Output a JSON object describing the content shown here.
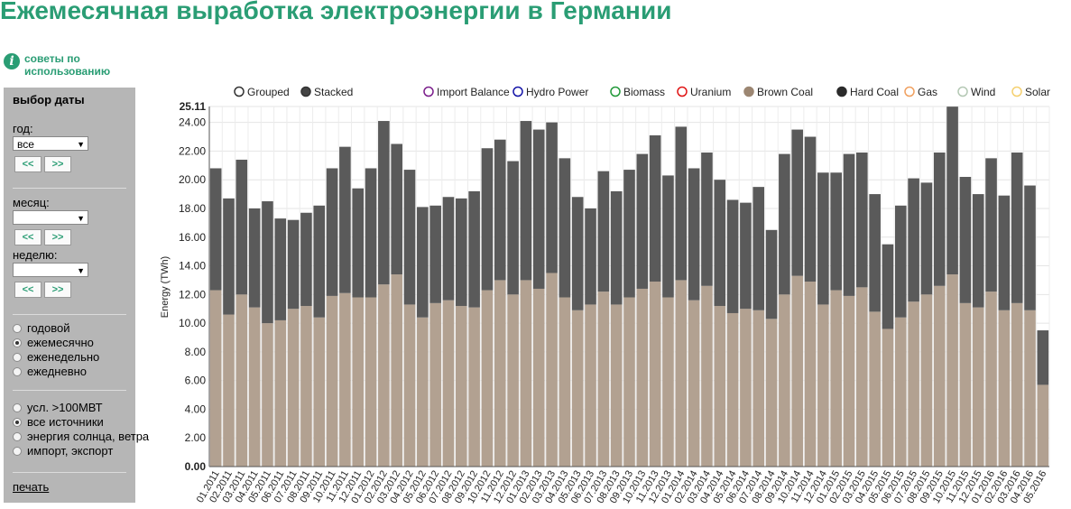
{
  "title": "Ежемесячная выработка электроэнергии в Германии",
  "tips_label": "советы по использованию",
  "sidebar": {
    "heading": "выбор даты",
    "year_label": "год:",
    "year_value": "все",
    "month_label": "месяц:",
    "month_value": "",
    "week_label": "неделю:",
    "week_value": "",
    "prev_label": "<<",
    "next_label": ">>",
    "period_options": [
      {
        "label": "годовой",
        "checked": false
      },
      {
        "label": "ежемесячно",
        "checked": true
      },
      {
        "label": "еженедельно",
        "checked": false
      },
      {
        "label": "ежедневно",
        "checked": false
      }
    ],
    "source_options": [
      {
        "label": "усл. >100МВТ",
        "checked": false
      },
      {
        "label": "все источники",
        "checked": true
      },
      {
        "label": "энергия солнца, ветра",
        "checked": false
      },
      {
        "label": "импорт, экспорт",
        "checked": false
      }
    ],
    "print_label": "печать"
  },
  "legend": {
    "modes": [
      {
        "label": "Grouped",
        "selected": false
      },
      {
        "label": "Stacked",
        "selected": true
      }
    ],
    "sources": [
      {
        "label": "Import Balance",
        "color": "#7b1f8c",
        "active": false
      },
      {
        "label": "Hydro Power",
        "color": "#1515a8",
        "active": false
      },
      {
        "label": "Biomass",
        "color": "#22993a",
        "active": false
      },
      {
        "label": "Uranium",
        "color": "#e01515",
        "active": false
      },
      {
        "label": "Brown Coal",
        "color": "#9c8672",
        "active": true
      },
      {
        "label": "Hard Coal",
        "color": "#2b2b2b",
        "active": true
      },
      {
        "label": "Gas",
        "color": "#f0a060",
        "active": false
      },
      {
        "label": "Wind",
        "color": "#b4c8b4",
        "active": false
      },
      {
        "label": "Solar",
        "color": "#f5d070",
        "active": false
      }
    ]
  },
  "chart_data": {
    "type": "bar",
    "stacked": true,
    "ylabel": "Energy (TWh)",
    "ylim": [
      0,
      25.11
    ],
    "ymax_label": "25.11",
    "yticks": [
      0,
      2,
      4,
      6,
      8,
      10,
      12,
      14,
      16,
      18,
      20,
      22,
      24
    ],
    "grid": true,
    "categories": [
      "01.2011",
      "02.2011",
      "03.2011",
      "04.2011",
      "05.2011",
      "06.2011",
      "07.2011",
      "08.2011",
      "09.2011",
      "10.2011",
      "11.2011",
      "12.2011",
      "01.2012",
      "02.2012",
      "03.2012",
      "04.2012",
      "05.2012",
      "06.2012",
      "07.2012",
      "08.2012",
      "09.2012",
      "10.2012",
      "11.2012",
      "12.2012",
      "01.2013",
      "02.2013",
      "03.2013",
      "04.2013",
      "05.2013",
      "06.2013",
      "07.2013",
      "08.2013",
      "09.2013",
      "10.2013",
      "11.2013",
      "12.2013",
      "01.2014",
      "02.2014",
      "03.2014",
      "04.2014",
      "05.2014",
      "06.2014",
      "07.2014",
      "08.2014",
      "09.2014",
      "10.2014",
      "11.2014",
      "12.2014",
      "01.2015",
      "02.2015",
      "03.2015",
      "04.2015",
      "05.2015",
      "06.2015",
      "07.2015",
      "08.2015",
      "09.2015",
      "10.2015",
      "11.2015",
      "12.2015",
      "01.2016",
      "02.2016",
      "03.2016",
      "04.2016",
      "05.2016"
    ],
    "series": [
      {
        "name": "Brown Coal",
        "color": "#b2a191",
        "values": [
          12.3,
          10.6,
          12.0,
          11.1,
          10.0,
          10.2,
          11.0,
          11.2,
          10.4,
          11.9,
          12.1,
          11.8,
          11.8,
          12.7,
          13.4,
          11.3,
          10.4,
          11.4,
          11.6,
          11.2,
          11.1,
          12.3,
          13.0,
          12.0,
          13.0,
          12.4,
          13.5,
          11.8,
          10.9,
          11.3,
          12.2,
          11.3,
          11.8,
          12.4,
          12.9,
          11.8,
          13.0,
          11.6,
          12.6,
          11.2,
          10.7,
          11.0,
          10.9,
          10.3,
          12.0,
          13.3,
          12.9,
          11.3,
          12.3,
          11.9,
          12.5,
          10.8,
          9.6,
          10.4,
          11.5,
          12.0,
          12.6,
          13.4,
          11.4,
          11.1,
          12.2,
          10.9,
          11.4,
          10.9,
          5.7
        ]
      },
      {
        "name": "Hard Coal",
        "color": "#5a5a5a",
        "values": [
          8.5,
          8.1,
          9.4,
          6.9,
          8.5,
          7.1,
          6.2,
          6.5,
          7.8,
          8.9,
          10.2,
          7.6,
          9.0,
          11.4,
          9.1,
          9.4,
          7.7,
          6.8,
          7.2,
          7.5,
          8.1,
          9.9,
          9.8,
          9.3,
          11.1,
          11.1,
          10.5,
          9.7,
          7.9,
          6.7,
          8.4,
          7.9,
          8.9,
          9.4,
          10.2,
          8.5,
          10.7,
          9.2,
          9.3,
          8.8,
          7.9,
          7.4,
          8.6,
          6.2,
          9.8,
          10.2,
          10.1,
          9.2,
          8.2,
          9.9,
          9.4,
          8.2,
          5.9,
          7.8,
          8.6,
          7.8,
          9.3,
          11.7,
          8.8,
          7.9,
          9.3,
          8.0,
          10.5,
          8.7,
          3.8
        ]
      }
    ]
  }
}
